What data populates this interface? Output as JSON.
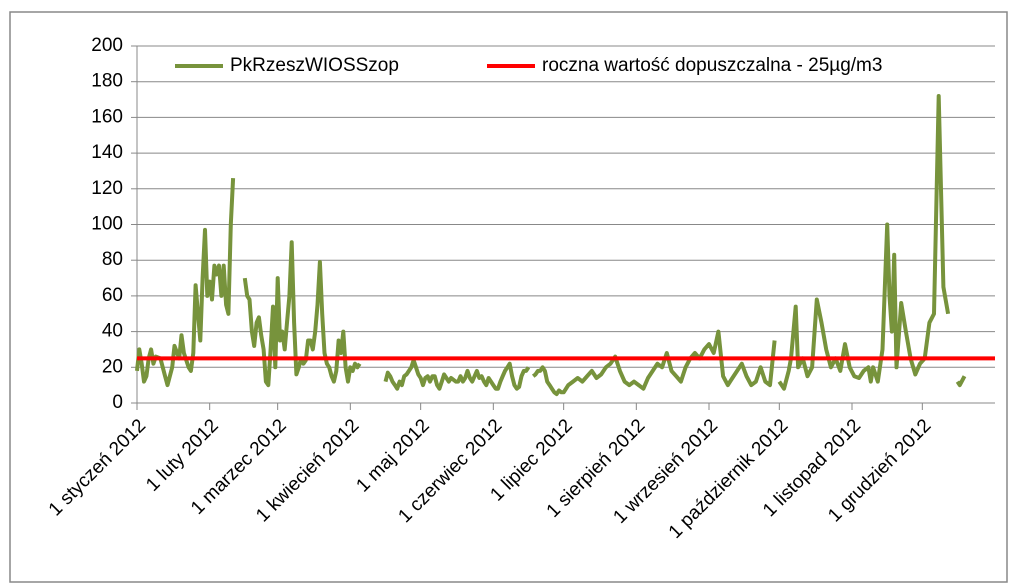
{
  "chart_data": {
    "type": "line",
    "x": [
      0,
      1,
      2,
      3,
      4,
      5,
      6,
      7,
      8,
      10,
      12,
      13,
      15,
      16,
      18,
      19,
      20,
      22,
      23,
      24,
      25,
      26,
      27,
      28,
      29,
      30,
      31,
      32,
      33,
      34,
      35,
      36,
      37,
      38,
      39,
      40,
      41,
      42,
      46,
      47,
      48,
      49,
      50,
      51,
      52,
      53,
      54,
      55,
      56,
      57,
      58,
      59,
      60,
      61,
      62,
      63,
      64,
      65,
      66,
      67,
      68,
      69,
      70,
      71,
      72,
      73,
      74,
      75,
      76,
      77,
      78,
      79,
      80,
      81,
      82,
      83,
      84,
      85,
      86,
      87,
      88,
      89,
      90,
      91,
      92,
      93,
      94,
      95,
      96,
      106,
      107,
      108,
      109,
      110,
      111,
      112,
      113,
      114,
      115,
      116,
      117,
      118,
      119,
      120,
      121,
      122,
      123,
      124,
      125,
      126,
      127,
      128,
      129,
      130,
      131,
      132,
      133,
      134,
      135,
      136,
      137,
      138,
      139,
      140,
      141,
      142,
      143,
      144,
      145,
      146,
      147,
      148,
      149,
      150,
      151,
      152,
      153,
      154,
      155,
      156,
      157,
      158,
      159,
      160,
      161,
      162,
      163,
      164,
      165,
      166,
      167,
      168,
      169,
      170,
      171,
      172,
      173,
      174,
      175,
      176,
      177,
      178,
      179,
      180,
      181,
      182,
      184,
      186,
      188,
      190,
      192,
      194,
      196,
      198,
      200,
      202,
      204,
      206,
      208,
      210,
      212,
      214,
      216,
      218,
      220,
      222,
      224,
      226,
      228,
      230,
      232,
      234,
      236,
      238,
      240,
      242,
      244,
      246,
      248,
      250,
      252,
      254,
      256,
      258,
      260,
      262,
      264,
      266,
      268,
      270,
      272,
      273,
      274,
      276,
      278,
      279,
      281,
      282,
      284,
      286,
      288,
      290,
      292,
      294,
      296,
      298,
      300,
      302,
      304,
      306,
      308,
      310,
      312,
      313,
      314,
      316,
      318,
      320,
      321,
      322,
      323,
      324,
      326,
      328,
      330,
      332,
      334,
      336,
      338,
      340,
      342,
      344,
      346,
      348,
      350,
      351,
      353
    ],
    "series": [
      {
        "name": "PkRzeszWIOSSzop",
        "color": "#77933c",
        "values": [
          18,
          30,
          22,
          12,
          15,
          25,
          30,
          22,
          26,
          25,
          15,
          10,
          20,
          32,
          25,
          38,
          28,
          20,
          18,
          28,
          66,
          50,
          35,
          70,
          97,
          60,
          68,
          58,
          77,
          72,
          77,
          60,
          77,
          55,
          50,
          100,
          126,
          null,
          70,
          60,
          58,
          40,
          32,
          45,
          48,
          38,
          30,
          12,
          10,
          30,
          54,
          20,
          70,
          35,
          40,
          30,
          45,
          60,
          90,
          45,
          16,
          20,
          25,
          22,
          24,
          35,
          35,
          30,
          40,
          55,
          79,
          50,
          28,
          22,
          20,
          15,
          12,
          18,
          35,
          28,
          40,
          20,
          12,
          20,
          18,
          22,
          20,
          22,
          null,
          12,
          17,
          15,
          12,
          10,
          8,
          12,
          10,
          15,
          16,
          18,
          20,
          24,
          20,
          16,
          14,
          10,
          14,
          15,
          12,
          15,
          15,
          10,
          8,
          12,
          16,
          14,
          12,
          14,
          13,
          12,
          12,
          15,
          12,
          14,
          18,
          14,
          12,
          15,
          18,
          14,
          15,
          12,
          10,
          14,
          12,
          10,
          8,
          8,
          12,
          15,
          18,
          20,
          22,
          15,
          10,
          8,
          9,
          15,
          18,
          18,
          20,
          null,
          15,
          16,
          18,
          18,
          20,
          18,
          12,
          10,
          8,
          6,
          5,
          7,
          6,
          6,
          10,
          12,
          14,
          12,
          15,
          18,
          14,
          16,
          20,
          22,
          26,
          18,
          12,
          10,
          12,
          10,
          8,
          14,
          18,
          22,
          20,
          28,
          18,
          15,
          12,
          20,
          25,
          28,
          25,
          30,
          33,
          28,
          40,
          15,
          10,
          14,
          18,
          22,
          15,
          10,
          12,
          20,
          12,
          10,
          35,
          null,
          12,
          8,
          18,
          25,
          54,
          20,
          25,
          15,
          20,
          58,
          45,
          30,
          20,
          25,
          18,
          33,
          20,
          15,
          14,
          18,
          20,
          12,
          20,
          12,
          30,
          100,
          60,
          40,
          83,
          20,
          56,
          40,
          25,
          16,
          22,
          25,
          45,
          50,
          172,
          65,
          50,
          null,
          12,
          10,
          15
        ]
      }
    ],
    "reference_line": {
      "name": "roczna wartość dopuszczalna - 25µg/m3",
      "value": 25,
      "color": "#ff0000"
    },
    "xlim": [
      0,
      366
    ],
    "xticks": [
      {
        "value": 0,
        "label": "1 styczeń 2012"
      },
      {
        "value": 31,
        "label": "1 luty 2012"
      },
      {
        "value": 60,
        "label": "1 marzec 2012"
      },
      {
        "value": 91,
        "label": "1 kwiecień 2012"
      },
      {
        "value": 121,
        "label": "1 maj 2012"
      },
      {
        "value": 152,
        "label": "1 czerwiec 2012"
      },
      {
        "value": 182,
        "label": "1 lipiec 2012"
      },
      {
        "value": 213,
        "label": "1 sierpień 2012"
      },
      {
        "value": 244,
        "label": "1 wrzesień 2012"
      },
      {
        "value": 274,
        "label": "1 październik 2012"
      },
      {
        "value": 305,
        "label": "1 listopad 2012"
      },
      {
        "value": 335,
        "label": "1 grudzień 2012"
      }
    ],
    "ylim": [
      0,
      200
    ],
    "yticks": [
      0,
      20,
      40,
      60,
      80,
      100,
      120,
      140,
      160,
      180,
      200
    ],
    "grid": true,
    "legend": "top"
  }
}
